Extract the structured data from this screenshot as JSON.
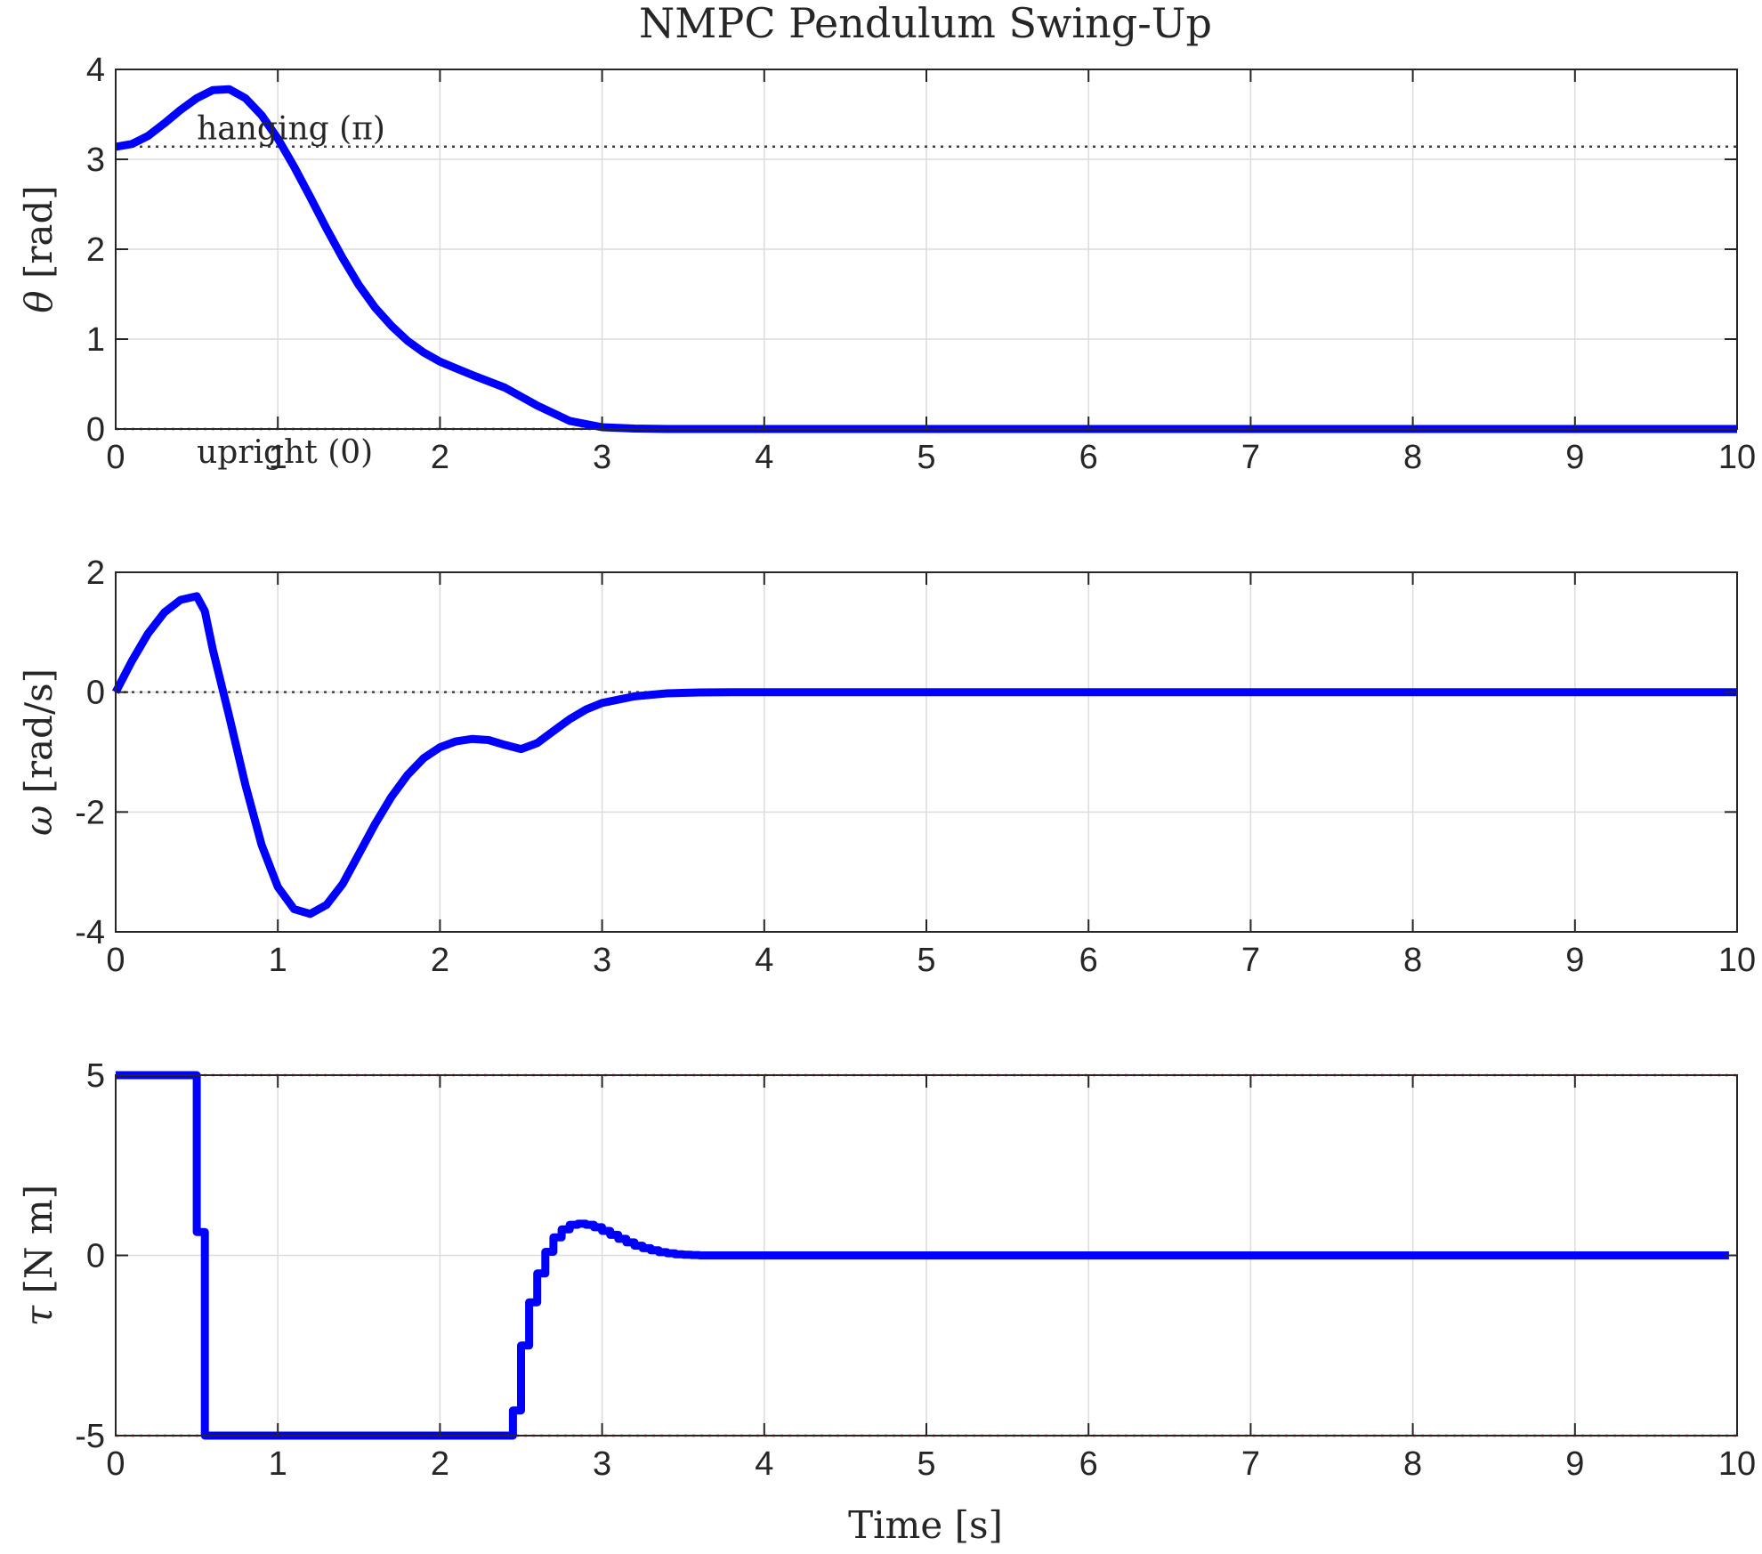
{
  "chart_data": {
    "title": "NMPC Pendulum Swing-Up",
    "xlabel": "Time [s]",
    "xlim": [
      0,
      10
    ],
    "xticks": [
      0,
      1,
      2,
      3,
      4,
      5,
      6,
      7,
      8,
      9,
      10
    ],
    "grid": true,
    "subplots": [
      {
        "id": "theta",
        "type": "line",
        "ylabel_symbol": "θ",
        "ylabel_unit": "[rad]",
        "ylim": [
          0,
          4
        ],
        "yticks": [
          0,
          1,
          2,
          3,
          4
        ],
        "colors": {
          "line": "#0000ff",
          "reference": "#404040"
        },
        "series": [
          {
            "name": "theta",
            "x": [
              0,
              0.1,
              0.2,
              0.3,
              0.4,
              0.5,
              0.6,
              0.7,
              0.8,
              0.9,
              1.0,
              1.1,
              1.2,
              1.3,
              1.4,
              1.5,
              1.6,
              1.7,
              1.8,
              1.9,
              2.0,
              2.2,
              2.4,
              2.6,
              2.8,
              3.0,
              3.2,
              3.4,
              3.6,
              4.0,
              5.0,
              6.0,
              7.0,
              8.0,
              9.0,
              10.0
            ],
            "y": [
              3.14,
              3.17,
              3.26,
              3.4,
              3.55,
              3.68,
              3.77,
              3.78,
              3.68,
              3.49,
              3.23,
              2.92,
              2.58,
              2.23,
              1.9,
              1.6,
              1.35,
              1.15,
              0.98,
              0.85,
              0.75,
              0.6,
              0.46,
              0.26,
              0.09,
              0.02,
              0.005,
              0,
              0,
              0,
              0,
              0,
              0,
              0,
              0,
              0
            ]
          }
        ],
        "references": [
          {
            "label": "hanging (π)",
            "y": 3.14159
          },
          {
            "label": "upright (0)",
            "y": 0
          }
        ]
      },
      {
        "id": "omega",
        "type": "line",
        "ylabel_symbol": "ω",
        "ylabel_unit": "[rad/s]",
        "ylim": [
          -4,
          2
        ],
        "yticks": [
          -4,
          -2,
          0,
          2
        ],
        "colors": {
          "line": "#0000ff",
          "reference": "#404040"
        },
        "series": [
          {
            "name": "omega",
            "x": [
              0,
              0.1,
              0.2,
              0.3,
              0.4,
              0.5,
              0.55,
              0.6,
              0.7,
              0.8,
              0.9,
              1.0,
              1.1,
              1.2,
              1.3,
              1.4,
              1.5,
              1.6,
              1.7,
              1.8,
              1.9,
              2.0,
              2.1,
              2.2,
              2.3,
              2.4,
              2.5,
              2.6,
              2.7,
              2.8,
              2.9,
              3.0,
              3.2,
              3.4,
              3.6,
              3.8,
              4.0,
              5.0,
              6.0,
              7.0,
              8.0,
              9.0,
              10.0
            ],
            "y": [
              0,
              0.52,
              0.98,
              1.33,
              1.54,
              1.6,
              1.35,
              0.7,
              -0.4,
              -1.55,
              -2.55,
              -3.25,
              -3.62,
              -3.7,
              -3.55,
              -3.2,
              -2.7,
              -2.2,
              -1.75,
              -1.38,
              -1.1,
              -0.92,
              -0.82,
              -0.78,
              -0.8,
              -0.88,
              -0.95,
              -0.85,
              -0.65,
              -0.45,
              -0.29,
              -0.18,
              -0.07,
              -0.02,
              -0.005,
              0,
              0,
              0,
              0,
              0,
              0,
              0,
              0
            ]
          }
        ],
        "references": [
          {
            "label": "",
            "y": 0
          }
        ]
      },
      {
        "id": "tau",
        "type": "line",
        "step": true,
        "ylabel_symbol": "τ",
        "ylabel_unit": "[N m]",
        "ylim": [
          -5,
          5
        ],
        "yticks": [
          -5,
          0,
          5
        ],
        "colors": {
          "line": "#0000ff",
          "bounds": "#ff0000"
        },
        "series": [
          {
            "name": "tau",
            "x": [
              0,
              0.5,
              0.55,
              2.45,
              2.5,
              2.55,
              2.6,
              2.65,
              2.7,
              2.75,
              2.8,
              2.85,
              2.9,
              2.95,
              3.0,
              3.05,
              3.1,
              3.15,
              3.2,
              3.25,
              3.3,
              3.35,
              3.4,
              3.45,
              3.5,
              3.55,
              3.6,
              3.65,
              3.7,
              3.75,
              3.8,
              3.85,
              9.95
            ],
            "y": [
              5,
              0.65,
              -5,
              -4.3,
              -2.5,
              -1.3,
              -0.5,
              0.1,
              0.5,
              0.72,
              0.85,
              0.88,
              0.85,
              0.78,
              0.68,
              0.57,
              0.46,
              0.36,
              0.27,
              0.2,
              0.14,
              0.09,
              0.06,
              0.03,
              0.02,
              0.01,
              0,
              0,
              0,
              0,
              0,
              0,
              0
            ]
          }
        ],
        "references": [
          {
            "label": "",
            "y": 5
          },
          {
            "label": "",
            "y": -5
          }
        ]
      }
    ]
  }
}
